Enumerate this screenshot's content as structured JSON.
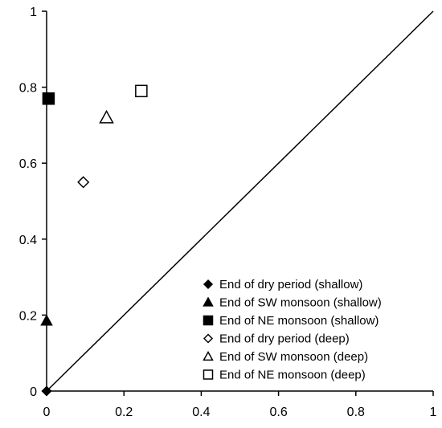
{
  "chart_data": {
    "type": "scatter",
    "title": "",
    "xlabel": "",
    "ylabel": "",
    "xlim": [
      0,
      1
    ],
    "ylim": [
      0,
      1
    ],
    "x_ticks": [
      "0",
      "0.2",
      "0.4",
      "0.6",
      "0.8",
      "1"
    ],
    "y_ticks": [
      "0",
      "0.2",
      "0.4",
      "0.6",
      "0.8",
      "1"
    ],
    "reference_line": {
      "type": "identity",
      "from": [
        0,
        0
      ],
      "to": [
        1,
        1
      ]
    },
    "grid": false,
    "legend_position": "bottom-right",
    "series": [
      {
        "name": "End of dry period (shallow)",
        "marker": "diamond-filled",
        "color": "#000000",
        "x": 0.0,
        "y": 0.0
      },
      {
        "name": "End of SW monsoon (shallow)",
        "marker": "triangle-filled",
        "color": "#000000",
        "x": 0.0,
        "y": 0.185
      },
      {
        "name": "End of NE monsoon (shallow)",
        "marker": "square-filled",
        "color": "#000000",
        "x": 0.005,
        "y": 0.77
      },
      {
        "name": "End of dry period (deep)",
        "marker": "diamond-open",
        "color": "#000000",
        "x": 0.095,
        "y": 0.55
      },
      {
        "name": "End of SW monsoon (deep)",
        "marker": "triangle-open",
        "color": "#000000",
        "x": 0.155,
        "y": 0.72
      },
      {
        "name": "End of NE monsoon (deep)",
        "marker": "square-open",
        "color": "#000000",
        "x": 0.245,
        "y": 0.79
      }
    ]
  }
}
